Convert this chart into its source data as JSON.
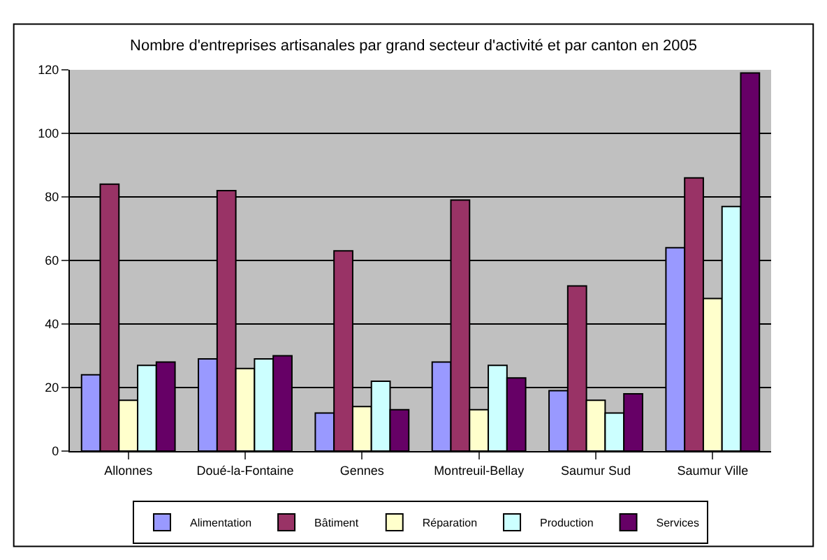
{
  "chart_data": {
    "type": "bar",
    "title": "Nombre d'entreprises artisanales par grand secteur d'activité et par canton en 2005",
    "categories": [
      "Allonnes",
      "Doué-la-Fontaine",
      "Gennes",
      "Montreuil-Bellay",
      "Saumur Sud",
      "Saumur Ville"
    ],
    "series": [
      {
        "name": "Alimentation",
        "color": "#9999ff",
        "values": [
          24,
          29,
          12,
          28,
          19,
          64
        ]
      },
      {
        "name": "Bâtiment",
        "color": "#993366",
        "values": [
          84,
          82,
          63,
          79,
          52,
          86
        ]
      },
      {
        "name": "Réparation",
        "color": "#ffffcc",
        "values": [
          16,
          26,
          14,
          13,
          16,
          48
        ]
      },
      {
        "name": "Production",
        "color": "#ccffff",
        "values": [
          27,
          29,
          22,
          27,
          12,
          77
        ]
      },
      {
        "name": "Services",
        "color": "#660066",
        "values": [
          28,
          30,
          13,
          23,
          18,
          119
        ]
      }
    ],
    "ylim": [
      0,
      120
    ],
    "yticks": [
      0,
      20,
      40,
      60,
      80,
      100,
      120
    ],
    "grid": "y",
    "legend": "bottom"
  }
}
